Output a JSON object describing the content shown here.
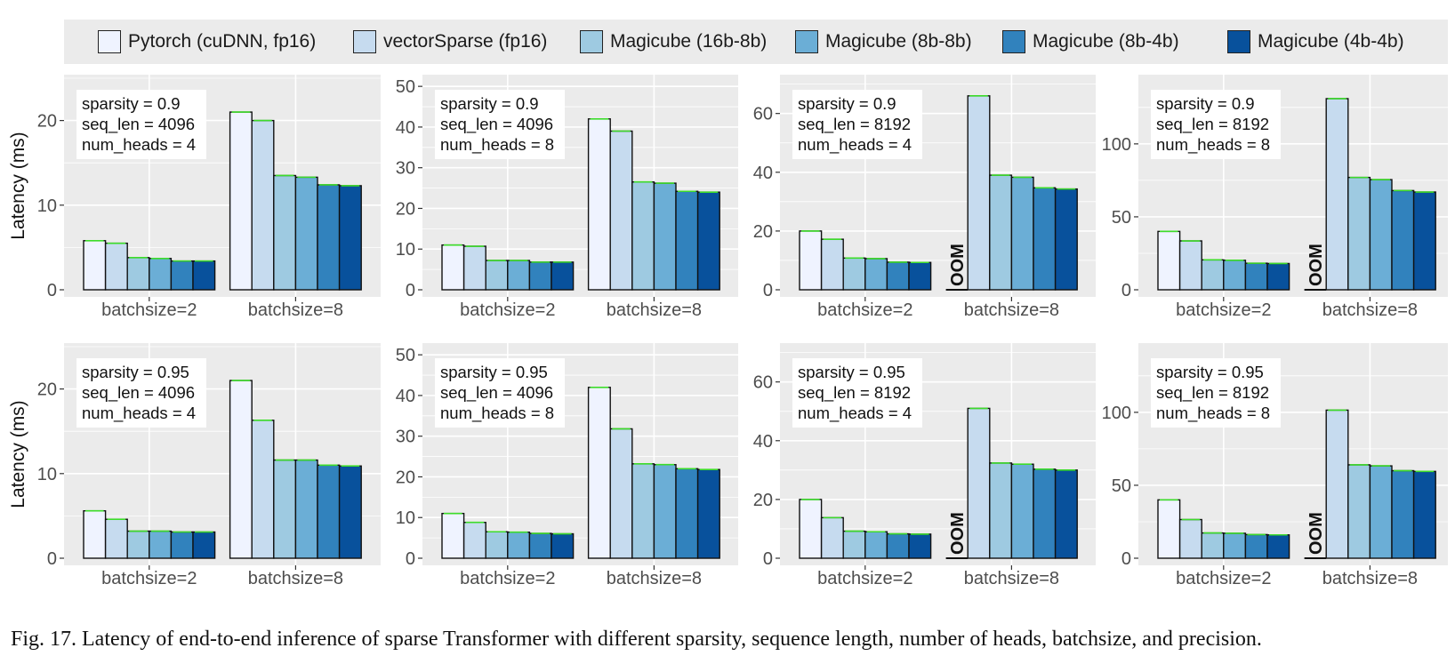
{
  "legend": [
    {
      "label": "Pytorch (cuDNN, fp16)",
      "color": "#eff3ff"
    },
    {
      "label": "vectorSparse (fp16)",
      "color": "#c6dbef"
    },
    {
      "label": "Magicube (16b-8b)",
      "color": "#9ecae1"
    },
    {
      "label": "Magicube (8b-8b)",
      "color": "#6baed6"
    },
    {
      "label": "Magicube (8b-4b)",
      "color": "#3182bd"
    },
    {
      "label": "Magicube (4b-4b)",
      "color": "#08519c"
    }
  ],
  "caption": "Fig. 17.  Latency of end-to-end inference of sparse Transformer with different sparsity, sequence length, number of heads, batchsize, and precision.",
  "chart_data": [
    {
      "type": "bar",
      "ylabel": "Latency (ms)",
      "ylim": [
        0,
        25
      ],
      "yticks": [
        0,
        10,
        20
      ],
      "categories": [
        "batchsize=2",
        "batchsize=8"
      ],
      "annotation": [
        "sparsity = 0.9",
        "seq_len = 4096",
        "num_heads = 4"
      ],
      "values": [
        [
          5.8,
          5.5,
          3.8,
          3.7,
          3.4,
          3.4
        ],
        [
          21.0,
          20.0,
          13.5,
          13.3,
          12.4,
          12.3
        ]
      ],
      "oom": [],
      "oom_label": "OOM"
    },
    {
      "type": "bar",
      "ylabel": "",
      "ylim": [
        0,
        52
      ],
      "yticks": [
        0,
        10,
        20,
        30,
        40,
        50
      ],
      "categories": [
        "batchsize=2",
        "batchsize=8"
      ],
      "annotation": [
        "sparsity = 0.9",
        "seq_len = 4096",
        "num_heads = 8"
      ],
      "values": [
        [
          11.0,
          10.7,
          7.2,
          7.2,
          6.8,
          6.8
        ],
        [
          42.0,
          39.0,
          26.5,
          26.2,
          24.2,
          24.0
        ]
      ],
      "oom": [],
      "oom_label": "OOM"
    },
    {
      "type": "bar",
      "ylabel": "",
      "ylim": [
        0,
        72
      ],
      "yticks": [
        0,
        20,
        40,
        60
      ],
      "categories": [
        "batchsize=2",
        "batchsize=8"
      ],
      "annotation": [
        "sparsity = 0.9",
        "seq_len = 8192",
        "num_heads = 4"
      ],
      "values": [
        [
          20.0,
          17.2,
          10.8,
          10.6,
          9.4,
          9.3
        ],
        [
          null,
          66.0,
          39.0,
          38.3,
          34.7,
          34.3
        ]
      ],
      "oom": [
        [
          1,
          0
        ]
      ],
      "oom_label": "OOM"
    },
    {
      "type": "bar",
      "ylabel": "",
      "ylim": [
        0,
        145
      ],
      "yticks": [
        0,
        50,
        100
      ],
      "categories": [
        "batchsize=2",
        "batchsize=8"
      ],
      "annotation": [
        "sparsity = 0.9",
        "seq_len = 8192",
        "num_heads = 8"
      ],
      "values": [
        [
          40.0,
          33.5,
          20.5,
          20.2,
          18.2,
          18.0
        ],
        [
          null,
          131.0,
          77.0,
          75.5,
          68.0,
          67.0
        ]
      ],
      "oom": [
        [
          1,
          0
        ]
      ],
      "oom_label": "OOM"
    },
    {
      "type": "bar",
      "ylabel": "Latency (ms)",
      "ylim": [
        0,
        25
      ],
      "yticks": [
        0,
        10,
        20
      ],
      "categories": [
        "batchsize=2",
        "batchsize=8"
      ],
      "annotation": [
        "sparsity = 0.95",
        "seq_len = 4096",
        "num_heads = 4"
      ],
      "values": [
        [
          5.6,
          4.6,
          3.2,
          3.2,
          3.1,
          3.1
        ],
        [
          21.0,
          16.3,
          11.6,
          11.6,
          11.0,
          10.9
        ]
      ],
      "oom": [],
      "oom_label": "OOM"
    },
    {
      "type": "bar",
      "ylabel": "",
      "ylim": [
        0,
        52
      ],
      "yticks": [
        0,
        10,
        20,
        30,
        40,
        50
      ],
      "categories": [
        "batchsize=2",
        "batchsize=8"
      ],
      "annotation": [
        "sparsity = 0.95",
        "seq_len = 4096",
        "num_heads = 8"
      ],
      "values": [
        [
          11.0,
          8.8,
          6.5,
          6.4,
          6.1,
          6.0
        ],
        [
          42.0,
          31.8,
          23.2,
          23.0,
          22.0,
          21.8
        ]
      ],
      "oom": [],
      "oom_label": "OOM"
    },
    {
      "type": "bar",
      "ylabel": "",
      "ylim": [
        0,
        72
      ],
      "yticks": [
        0,
        20,
        40,
        60
      ],
      "categories": [
        "batchsize=2",
        "batchsize=8"
      ],
      "annotation": [
        "sparsity = 0.95",
        "seq_len = 8192",
        "num_heads = 4"
      ],
      "values": [
        [
          20.0,
          13.8,
          9.2,
          9.0,
          8.3,
          8.2
        ],
        [
          null,
          51.0,
          32.4,
          32.0,
          30.3,
          30.0
        ]
      ],
      "oom": [
        [
          1,
          0
        ]
      ],
      "oom_label": "OOM"
    },
    {
      "type": "bar",
      "ylabel": "",
      "ylim": [
        0,
        145
      ],
      "yticks": [
        0,
        50,
        100
      ],
      "categories": [
        "batchsize=2",
        "batchsize=8"
      ],
      "annotation": [
        "sparsity = 0.95",
        "seq_len = 8192",
        "num_heads = 8"
      ],
      "values": [
        [
          40.0,
          26.5,
          17.3,
          17.1,
          16.2,
          16.0
        ],
        [
          null,
          101.5,
          64.0,
          63.3,
          60.0,
          59.5
        ]
      ],
      "oom": [
        [
          1,
          0
        ]
      ],
      "oom_label": "OOM"
    }
  ]
}
